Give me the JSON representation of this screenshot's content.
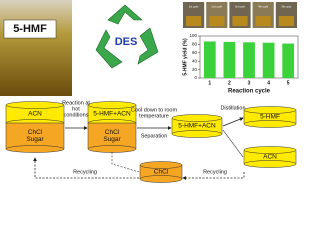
{
  "photo": {
    "label": "5-HMF"
  },
  "recycle": {
    "label": "DES"
  },
  "chart": {
    "photo_labels": [
      "1st cycle",
      "2nd cycle",
      "3rd cycle",
      "4th cycle",
      "5th cycle"
    ],
    "y_label": "5-HMF yield (%)",
    "x_label": "Reaction cycle",
    "categories": [
      "1",
      "2",
      "3",
      "4",
      "5"
    ],
    "values": [
      87,
      86,
      85,
      84,
      82
    ],
    "color": "#3bd13b",
    "ylim": [
      0,
      100
    ],
    "yticks": [
      0,
      20,
      40,
      60,
      80,
      100
    ]
  },
  "nodes": [
    {
      "top": "ACN",
      "bottom": [
        "ChCl",
        "Sugar"
      ]
    },
    {
      "top": "5-HMF+ACN",
      "bottom": [
        "ChCl",
        "Sugar"
      ]
    },
    {
      "top": "5-HMF+ACN"
    },
    {
      "top": "5-HMF"
    },
    {
      "top": "ACN"
    },
    {
      "bottom": [
        "ChCl"
      ]
    }
  ],
  "edges": {
    "reaction": [
      "Reaction at",
      "hot",
      "conditions"
    ],
    "cool": [
      "Cool down to room",
      "temperature"
    ],
    "separation": "Separation",
    "distillation": "Distillation",
    "recycling_left": "Recycling",
    "recycling_right": "Recycling"
  }
}
